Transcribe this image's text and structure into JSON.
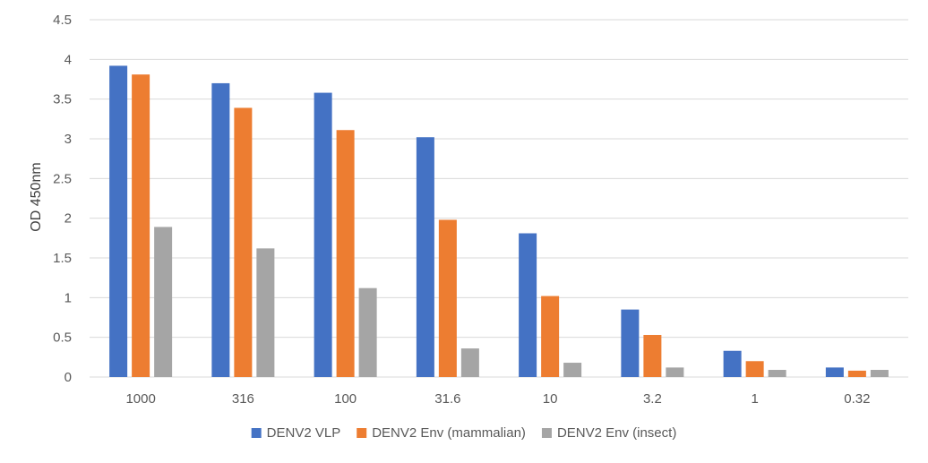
{
  "chart_data": {
    "type": "bar",
    "title": "",
    "xlabel": "",
    "ylabel": "OD 450nm",
    "ylim": [
      0,
      4.5
    ],
    "yticks": [
      "0",
      "0.5",
      "1",
      "1.5",
      "2",
      "2.5",
      "3",
      "3.5",
      "4",
      "4.5"
    ],
    "categories": [
      "1000",
      "316",
      "100",
      "31.6",
      "10",
      "3.2",
      "1",
      "0.32"
    ],
    "series": [
      {
        "name": "DENV2 VLP",
        "color": "#4472c4",
        "values": [
          3.92,
          3.7,
          3.58,
          3.02,
          1.81,
          0.85,
          0.33,
          0.12
        ]
      },
      {
        "name": "DENV2 Env (mammalian)",
        "color": "#ed7d31",
        "values": [
          3.81,
          3.39,
          3.11,
          1.98,
          1.02,
          0.53,
          0.2,
          0.08
        ]
      },
      {
        "name": "DENV2 Env (insect)",
        "color": "#a5a5a5",
        "values": [
          1.89,
          1.62,
          1.12,
          0.36,
          0.18,
          0.12,
          0.09,
          0.09
        ]
      }
    ],
    "grid": true,
    "legend_position": "bottom"
  }
}
